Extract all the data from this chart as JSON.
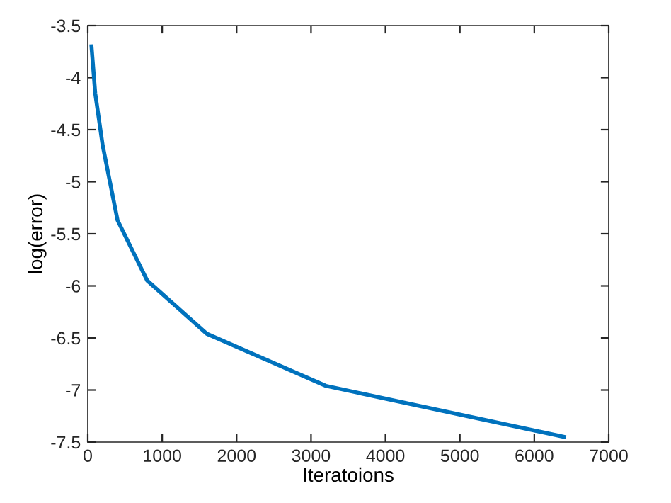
{
  "chart_data": {
    "type": "line",
    "xlabel": "Iteratoions",
    "ylabel": "log(error)",
    "x": [
      50,
      100,
      200,
      400,
      800,
      1600,
      3200,
      6400
    ],
    "series": [
      {
        "color": "#0072bd",
        "values": [
          -3.7,
          -4.15,
          -4.65,
          -5.37,
          -5.95,
          -6.46,
          -6.96,
          -7.45
        ]
      }
    ],
    "xlim": [
      0,
      7000
    ],
    "xticks": [
      0,
      1000,
      2000,
      3000,
      4000,
      5000,
      6000,
      7000
    ],
    "ylim": [
      -7.5,
      -3.5
    ],
    "yticks": [
      -7.5,
      -7,
      -6.5,
      -6,
      -5.5,
      -5,
      -4.5,
      -4,
      -3.5
    ],
    "grid": false,
    "marker": "none",
    "line_style": "solid"
  }
}
